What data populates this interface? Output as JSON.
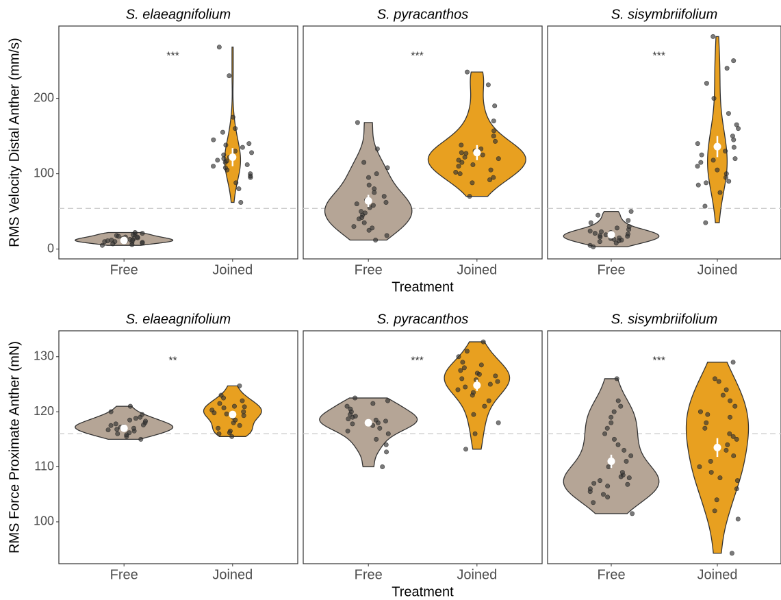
{
  "chart_data": [
    {
      "type": "violin",
      "title": "S. elaeagnifolium",
      "ylabel": "RMS Velocity Distal Anther (mm/s)",
      "categories": [
        "Free",
        "Joined"
      ],
      "colors": [
        "#b5a596",
        "#e8a020"
      ],
      "groups": [
        {
          "values": [
            5,
            8,
            10,
            12,
            14,
            16,
            18,
            20,
            22,
            11,
            9,
            13,
            15,
            7,
            17,
            19,
            12,
            10,
            6,
            14,
            21,
            16,
            11,
            13,
            9
          ],
          "mean": 11.5,
          "se": 1
        },
        {
          "values": [
            62,
            80,
            88,
            95,
            100,
            105,
            108,
            112,
            115,
            118,
            120,
            122,
            125,
            128,
            130,
            135,
            140,
            145,
            155,
            160,
            175,
            230,
            268,
            97,
            110,
            117,
            138
          ],
          "mean": 122,
          "se": 12
        }
      ],
      "annotation": "***",
      "ylim": [
        -13,
        296
      ],
      "yticks": [
        0,
        100,
        200
      ],
      "reference_line": 54
    },
    {
      "type": "violin",
      "title": "S. pyracanthos",
      "xlabel": "Treatment",
      "categories": [
        "Free",
        "Joined"
      ],
      "colors": [
        "#b5a596",
        "#e8a020"
      ],
      "groups": [
        {
          "values": [
            12,
            18,
            25,
            30,
            35,
            40,
            45,
            48,
            50,
            55,
            58,
            60,
            62,
            65,
            70,
            75,
            80,
            85,
            95,
            100,
            108,
            115,
            133,
            168,
            28,
            42
          ],
          "mean": 64,
          "se": 8
        },
        {
          "values": [
            70,
            88,
            92,
            95,
            100,
            105,
            110,
            112,
            115,
            118,
            120,
            122,
            125,
            128,
            130,
            133,
            138,
            143,
            150,
            157,
            170,
            190,
            218,
            235,
            102,
            127
          ],
          "mean": 128,
          "se": 10
        }
      ],
      "annotation": "***",
      "ylim": [
        -13,
        296
      ],
      "reference_line": 54
    },
    {
      "type": "violin",
      "title": "S. sisymbriifolium",
      "categories": [
        "Free",
        "Joined"
      ],
      "colors": [
        "#b5a596",
        "#e8a020"
      ],
      "groups": [
        {
          "values": [
            3,
            5,
            8,
            10,
            12,
            14,
            15,
            16,
            17,
            18,
            19,
            20,
            21,
            22,
            24,
            26,
            28,
            30,
            35,
            38,
            45,
            50,
            13,
            11,
            23
          ],
          "mean": 19,
          "se": 2
        },
        {
          "values": [
            35,
            57,
            75,
            85,
            90,
            95,
            100,
            105,
            110,
            115,
            120,
            125,
            130,
            135,
            140,
            145,
            150,
            160,
            165,
            180,
            200,
            220,
            240,
            250,
            282,
            88,
            118
          ],
          "mean": 136,
          "se": 14
        }
      ],
      "annotation": "***",
      "ylim": [
        -13,
        296
      ],
      "reference_line": 54
    },
    {
      "type": "violin",
      "title": "S. elaeagnifolium",
      "ylabel": "RMS Force Proximate Anther (mN)",
      "categories": [
        "Free",
        "Joined"
      ],
      "colors": [
        "#b5a596",
        "#e8a020"
      ],
      "groups": [
        {
          "values": [
            115,
            115.5,
            116,
            116.2,
            116.5,
            116.8,
            117,
            117.2,
            117.5,
            117.8,
            118,
            118.3,
            118.5,
            119,
            119.5,
            120,
            121,
            116.7,
            117.3,
            115.8,
            118.8,
            117.6
          ],
          "mean": 117,
          "se": 0.4
        },
        {
          "values": [
            115.5,
            116,
            116.5,
            117,
            117.5,
            118,
            118.5,
            119,
            119.3,
            119.6,
            120,
            120.3,
            120.7,
            121,
            121.5,
            122,
            122.5,
            123,
            124.7,
            116.2,
            119.8,
            120.9
          ],
          "mean": 119.5,
          "se": 0.6
        }
      ],
      "annotation": "**",
      "ylim": [
        92.4,
        134.7
      ],
      "yticks": [
        100,
        110,
        120,
        130
      ],
      "reference_line": 116
    },
    {
      "type": "violin",
      "title": "S. pyracanthos",
      "xlabel": "Treatment",
      "categories": [
        "Free",
        "Joined"
      ],
      "colors": [
        "#b5a596",
        "#e8a020"
      ],
      "groups": [
        {
          "values": [
            110,
            112.7,
            114,
            115,
            116,
            116.5,
            117,
            117.5,
            118,
            118.3,
            118.7,
            119,
            119.5,
            120,
            120.5,
            121,
            121.5,
            122,
            122.5,
            117.8,
            119.2,
            118.5
          ],
          "mean": 118,
          "se": 0.5
        },
        {
          "values": [
            113.2,
            116,
            118,
            119.5,
            121,
            122,
            123,
            123.5,
            124,
            124.5,
            125,
            125.5,
            126,
            126.5,
            127,
            127.5,
            128,
            128.5,
            129,
            130,
            131,
            132.7,
            126.8,
            125.8
          ],
          "mean": 124.8,
          "se": 1
        }
      ],
      "annotation": "***",
      "ylim": [
        92.4,
        134.7
      ],
      "reference_line": 116
    },
    {
      "type": "violin",
      "title": "S. sisymbriifolium",
      "categories": [
        "Free",
        "Joined"
      ],
      "colors": [
        "#b5a596",
        "#e8a020"
      ],
      "groups": [
        {
          "values": [
            101.5,
            103.5,
            104.5,
            105,
            105.5,
            106,
            106.5,
            107,
            107.5,
            108,
            108.5,
            109,
            110,
            111,
            112,
            113,
            114,
            115,
            116,
            117,
            118,
            119,
            120,
            121,
            122,
            126,
            108.2,
            106.8
          ],
          "mean": 111,
          "se": 1.2
        },
        {
          "values": [
            94.3,
            100.5,
            102,
            104,
            106,
            107.5,
            109,
            110,
            111,
            112,
            113,
            114,
            115,
            116,
            117,
            118,
            119,
            120,
            121,
            122,
            123,
            124,
            125.5,
            126,
            129,
            108,
            115.5,
            119.5
          ],
          "mean": 113.5,
          "se": 1.7
        }
      ],
      "annotation": "***",
      "ylim": [
        92.4,
        134.7
      ],
      "reference_line": 116
    }
  ]
}
